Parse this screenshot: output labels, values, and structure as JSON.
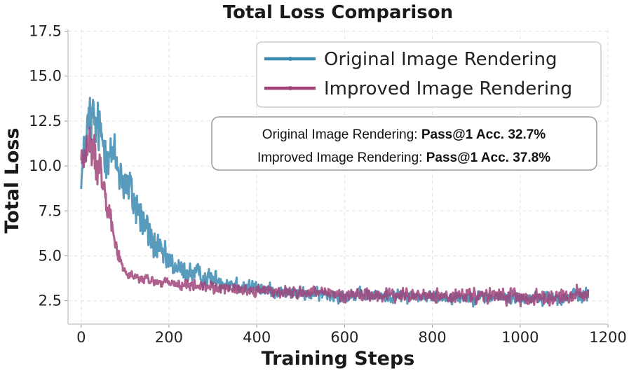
{
  "chart_data": {
    "type": "line",
    "title": "Total Loss Comparison",
    "xlabel": "Training Steps",
    "ylabel": "Total Loss",
    "xlim": [
      -30,
      1200
    ],
    "ylim": [
      1.2,
      17.6
    ],
    "xticks": [
      0,
      200,
      400,
      600,
      800,
      1000,
      1200
    ],
    "yticks": [
      2.5,
      5.0,
      7.5,
      10.0,
      12.5,
      15.0,
      17.5
    ],
    "xtick_labels": [
      "0",
      "200",
      "400",
      "600",
      "800",
      "1000",
      "1200"
    ],
    "ytick_labels": [
      "2.5",
      "5.0",
      "7.5",
      "10.0",
      "12.5",
      "15.0",
      "17.5"
    ],
    "grid": true,
    "legend_position": "top-right",
    "series": [
      {
        "name": "Original Image Rendering",
        "color": "#3b8ab0",
        "x": [
          0,
          10,
          20,
          30,
          40,
          50,
          60,
          70,
          80,
          90,
          100,
          110,
          120,
          130,
          140,
          150,
          160,
          170,
          180,
          190,
          200,
          220,
          240,
          260,
          280,
          300,
          320,
          340,
          360,
          380,
          400,
          450,
          500,
          550,
          600,
          650,
          700,
          750,
          800,
          850,
          900,
          950,
          1000,
          1050,
          1100,
          1130,
          1155
        ],
        "values": [
          9.2,
          11.5,
          12.6,
          12.3,
          11.9,
          11.4,
          11.0,
          10.6,
          10.1,
          9.6,
          9.1,
          8.6,
          8.1,
          7.6,
          7.0,
          6.4,
          5.9,
          5.5,
          5.1,
          4.9,
          4.6,
          4.3,
          4.1,
          4.0,
          3.8,
          3.7,
          3.6,
          3.5,
          3.4,
          3.3,
          3.2,
          3.0,
          2.9,
          2.85,
          2.8,
          2.8,
          2.75,
          2.75,
          2.7,
          2.7,
          2.7,
          2.7,
          2.65,
          2.65,
          2.7,
          2.8,
          2.8
        ],
        "noise": [
          0.8,
          2.2,
          2.5,
          2.4,
          2.3,
          2.2,
          2.1,
          2.0,
          2.0,
          2.0,
          2.0,
          1.9,
          1.9,
          1.8,
          1.8,
          1.6,
          1.5,
          1.3,
          1.2,
          1.1,
          1.0,
          0.9,
          0.8,
          0.8,
          0.75,
          0.7,
          0.7,
          0.65,
          0.6,
          0.6,
          0.55,
          0.5,
          0.5,
          0.5,
          0.5,
          0.5,
          0.5,
          0.5,
          0.5,
          0.5,
          0.5,
          0.5,
          0.5,
          0.5,
          0.5,
          0.6,
          0.5
        ]
      },
      {
        "name": "Improved Image Rendering",
        "color": "#a0457a",
        "x": [
          0,
          10,
          20,
          30,
          40,
          50,
          60,
          70,
          80,
          90,
          100,
          110,
          120,
          130,
          140,
          150,
          160,
          170,
          180,
          190,
          200,
          220,
          240,
          260,
          280,
          300,
          320,
          340,
          360,
          380,
          400,
          450,
          500,
          550,
          600,
          650,
          700,
          750,
          800,
          850,
          900,
          950,
          1000,
          1050,
          1100,
          1130,
          1155
        ],
        "values": [
          10.4,
          10.6,
          10.9,
          10.6,
          10.1,
          9.3,
          8.2,
          6.8,
          5.5,
          4.6,
          4.1,
          3.9,
          3.8,
          3.75,
          3.7,
          3.65,
          3.6,
          3.55,
          3.5,
          3.5,
          3.45,
          3.4,
          3.35,
          3.3,
          3.3,
          3.25,
          3.2,
          3.2,
          3.15,
          3.1,
          3.1,
          3.0,
          2.95,
          2.9,
          2.85,
          2.85,
          2.8,
          2.8,
          2.75,
          2.75,
          2.75,
          2.75,
          2.7,
          2.7,
          2.75,
          2.85,
          2.85
        ],
        "noise": [
          1.0,
          1.6,
          2.0,
          1.8,
          1.6,
          1.4,
          1.2,
          0.8,
          0.6,
          0.45,
          0.4,
          0.4,
          0.4,
          0.4,
          0.4,
          0.4,
          0.4,
          0.4,
          0.4,
          0.4,
          0.4,
          0.4,
          0.45,
          0.45,
          0.45,
          0.45,
          0.45,
          0.45,
          0.45,
          0.45,
          0.45,
          0.5,
          0.5,
          0.5,
          0.55,
          0.55,
          0.55,
          0.55,
          0.55,
          0.55,
          0.55,
          0.55,
          0.55,
          0.55,
          0.55,
          0.6,
          0.5
        ]
      }
    ],
    "annotation": {
      "lines": [
        {
          "prefix": "Original Image Rendering: ",
          "value": "Pass@1 Acc. 32.7%"
        },
        {
          "prefix": "Improved Image Rendering: ",
          "value": "Pass@1 Acc. 37.8%"
        }
      ]
    }
  }
}
